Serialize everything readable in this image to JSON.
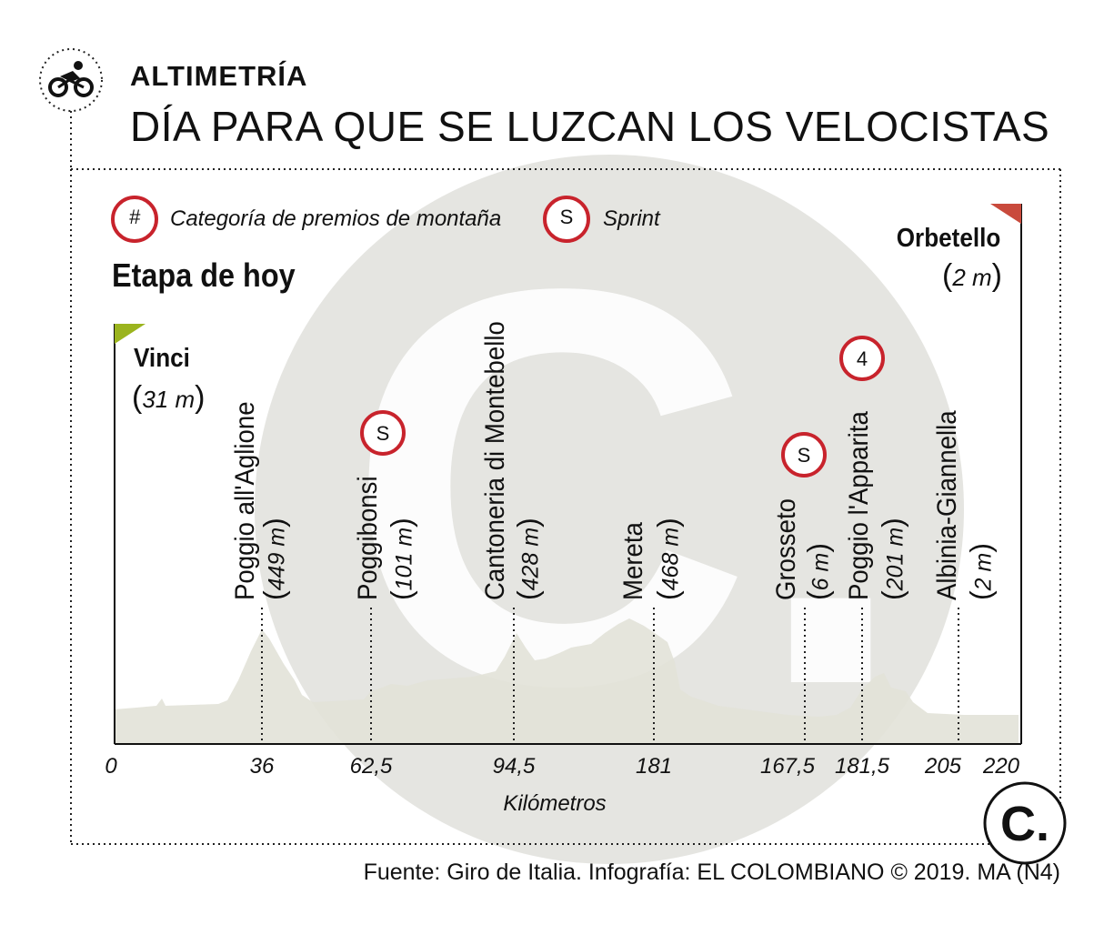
{
  "header": {
    "section_label": "ALTIMETRÍA",
    "headline": "DÍA PARA QUE SE LUZCAN LOS VELOCISTAS"
  },
  "legend": {
    "mountain_symbol": "#",
    "mountain_label": "Categoría de premios de montaña",
    "sprint_symbol": "S",
    "sprint_label": "Sprint"
  },
  "stage_label": "Etapa de hoy",
  "start": {
    "city": "Vinci",
    "altitude": "31 m",
    "flag_color": "#9bb41e"
  },
  "finish": {
    "city": "Orbetello",
    "altitude": "2 m",
    "flag_color": "#c94a3c"
  },
  "colors": {
    "badge": "#c8232c",
    "profile_fill": "#e2e2d8",
    "watermark": "#dededa"
  },
  "chart_data": {
    "type": "area",
    "xlabel": "Kilómetros",
    "x_tick_labels": [
      "0",
      "36",
      "62,5",
      "94,5",
      "181",
      "167,5",
      "181,5",
      "205",
      "220"
    ],
    "points": [
      {
        "name": "Poggio all'Aglione",
        "km": "36",
        "altitude": "449 m",
        "badge": ""
      },
      {
        "name": "Poggibonsi",
        "km": "62,5",
        "altitude": "101 m",
        "badge": "S"
      },
      {
        "name": "Cantoneria di Montebello",
        "km": "94,5",
        "altitude": "428 m",
        "badge": ""
      },
      {
        "name": "Mereta",
        "km": "181",
        "altitude": "468 m",
        "badge": ""
      },
      {
        "name": "Grosseto",
        "km": "167,5",
        "altitude": "6 m",
        "badge": "S"
      },
      {
        "name": "Poggio l'Apparita",
        "km": "181,5",
        "altitude": "201 m",
        "badge": "4"
      },
      {
        "name": "Albinia-Giannella",
        "km": "205",
        "altitude": "2 m",
        "badge": ""
      }
    ]
  },
  "footer": "Fuente: Giro de Italia. Infografía: EL COLOMBIANO © 2019. MA (N4)",
  "logo_letter": "C."
}
